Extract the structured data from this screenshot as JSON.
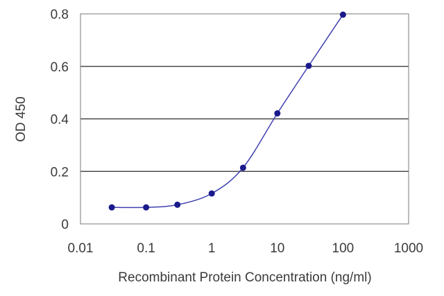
{
  "chart_data": {
    "type": "line",
    "title": "",
    "xlabel": "Recombinant Protein Concentration (ng/ml)",
    "ylabel": "OD 450",
    "x_scale": "log",
    "xlim": [
      0.01,
      1000
    ],
    "ylim": [
      0,
      0.8
    ],
    "x_ticks": [
      "0.01",
      "0.1",
      "1",
      "10",
      "100",
      "1000"
    ],
    "y_ticks": [
      "0",
      "0.2",
      "0.4",
      "0.6",
      "0.8"
    ],
    "grid": "horizontal",
    "legend": "none",
    "colors": {
      "line": "#4040b0",
      "marker": "#1a1a8c",
      "grid": "#2a2a2a",
      "plot_border": "#7a7a7a"
    },
    "series": [
      {
        "x": [
          0.03,
          0.1,
          0.3,
          1,
          3,
          10,
          30,
          100
        ],
        "values": [
          0.063,
          0.063,
          0.073,
          0.116,
          0.214,
          0.421,
          0.602,
          0.797
        ]
      }
    ]
  }
}
